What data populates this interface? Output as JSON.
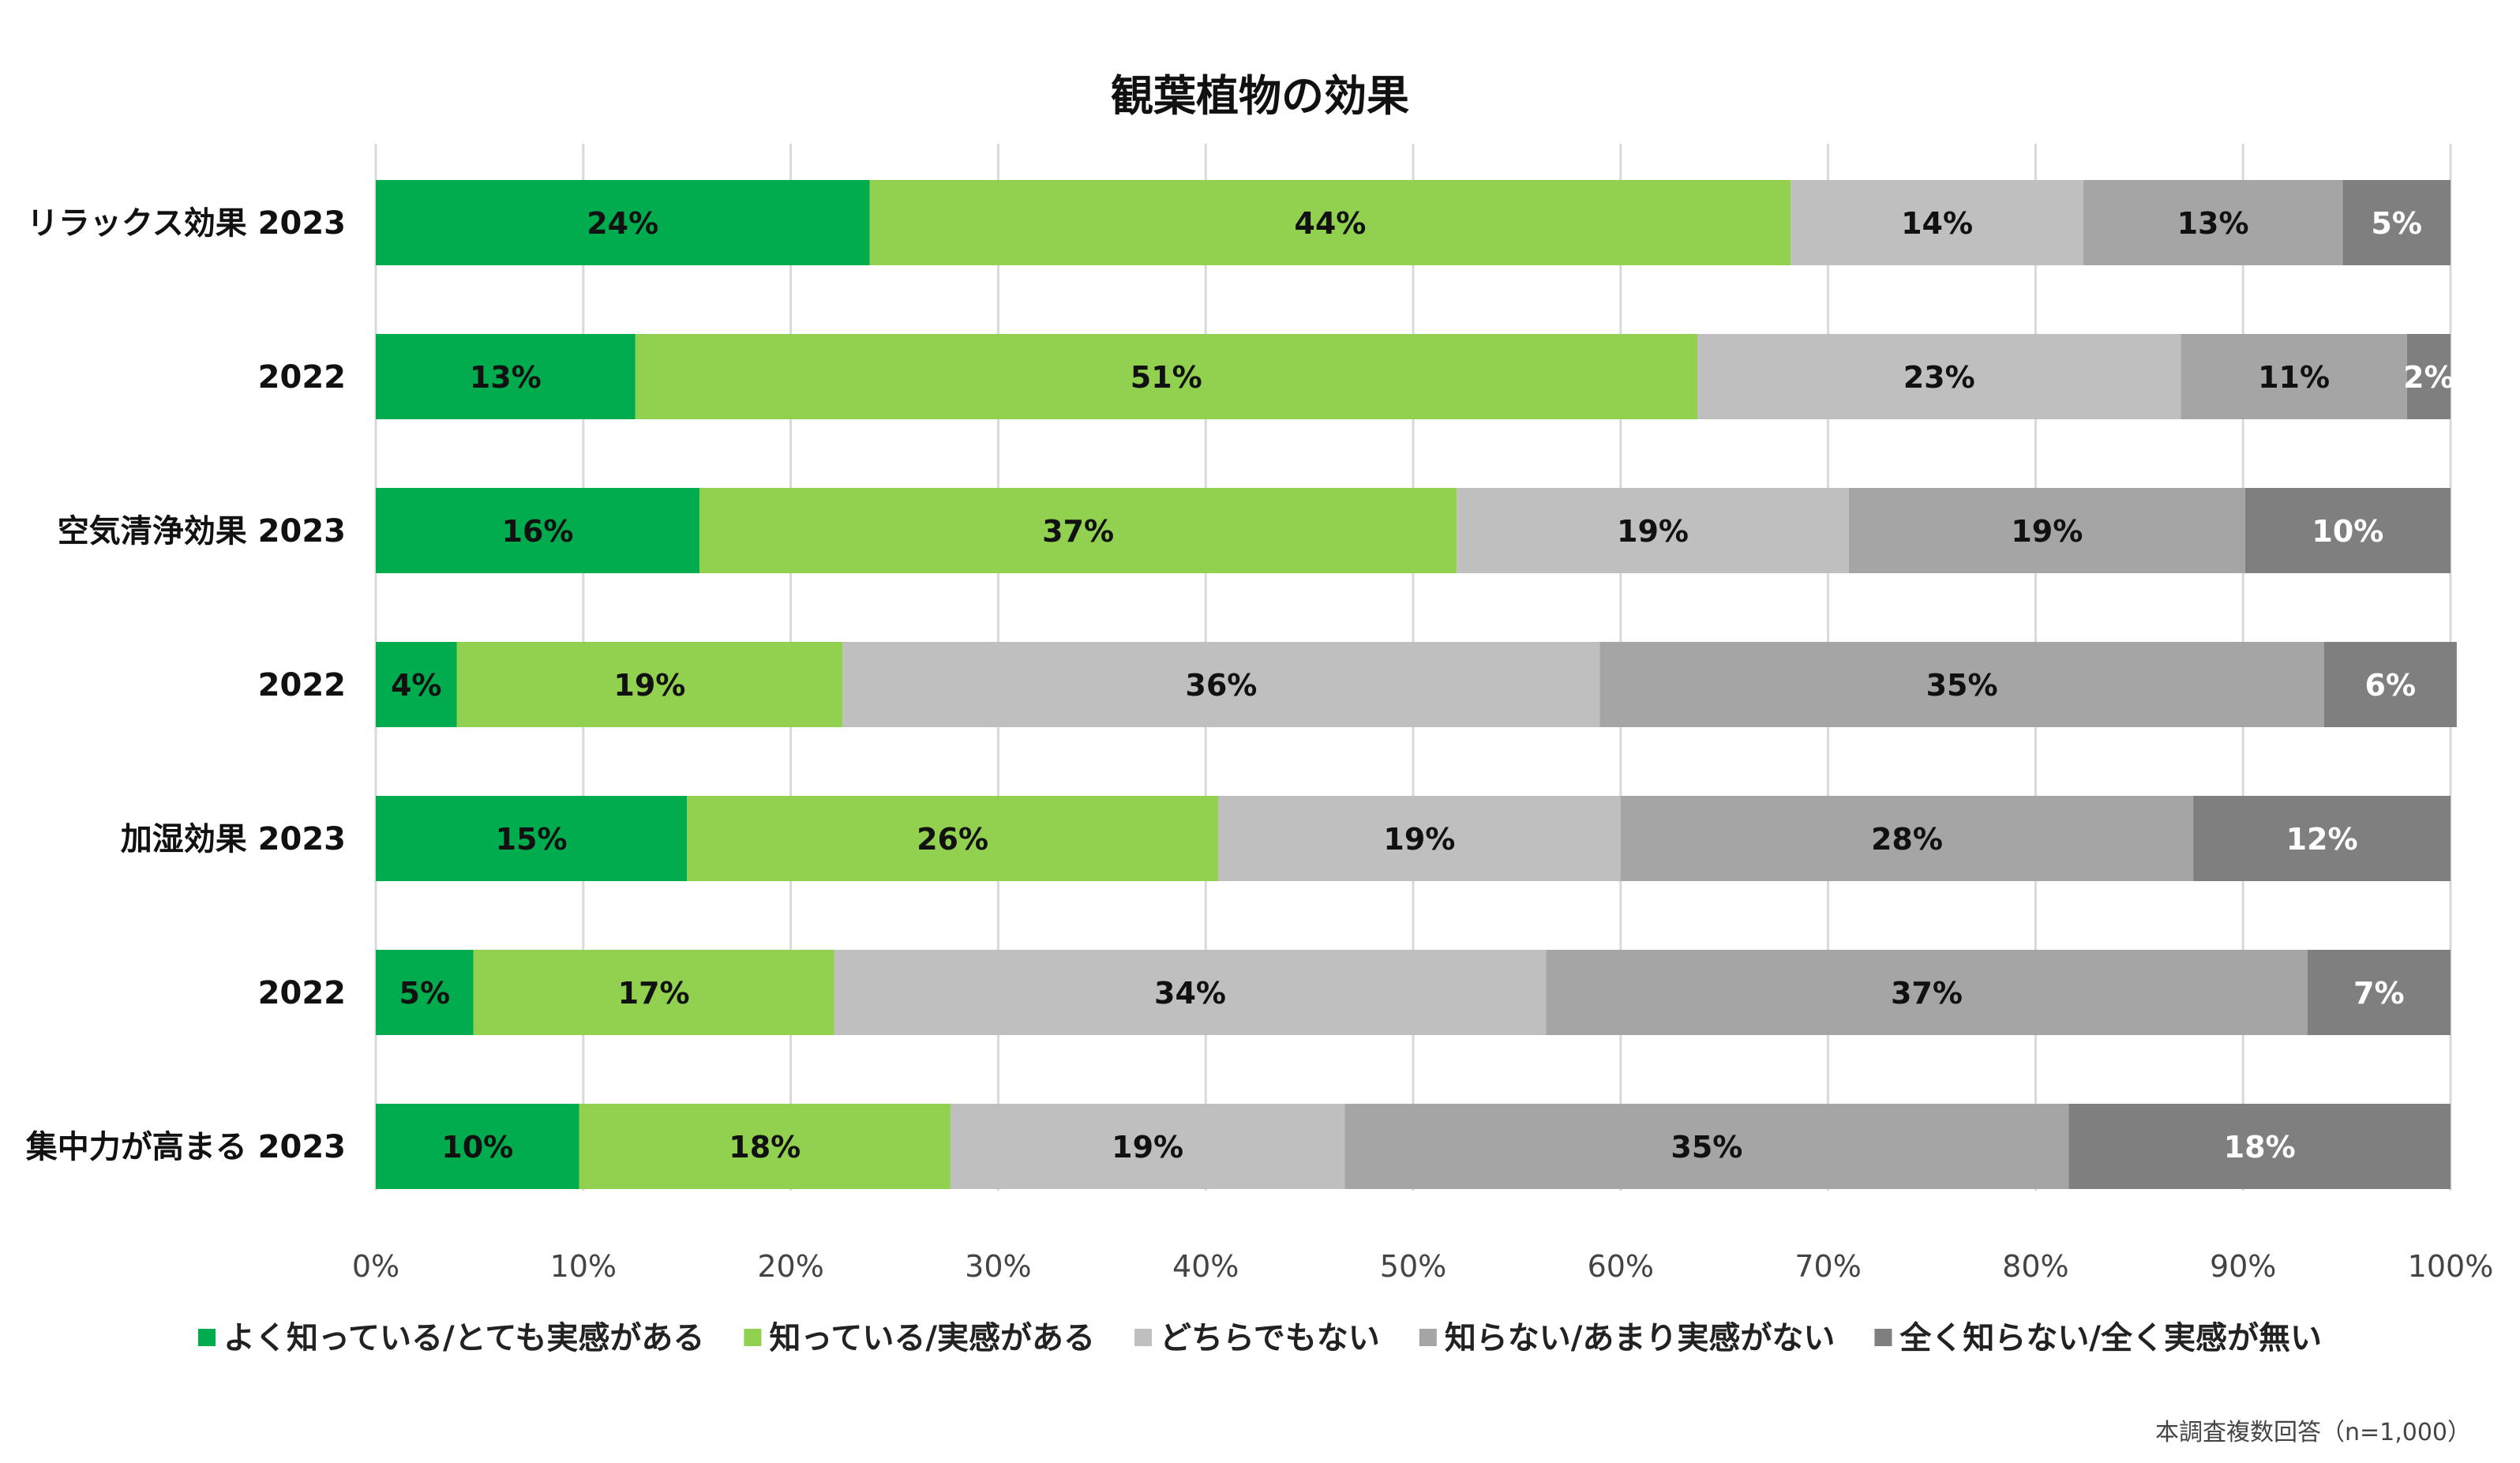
{
  "chart_data": {
    "type": "bar",
    "orientation": "horizontal",
    "stacked": true,
    "title": "観葉植物の効果",
    "categories": [
      "リラックス効果 2023",
      "2022",
      "空気清浄効果 2023",
      "2022",
      "加湿効果 2023",
      "2022",
      "集中力が高まる  2023"
    ],
    "series": [
      {
        "name": "よく知っている/とても実感がある",
        "color": "#00ac4e",
        "values": [
          23.8,
          12.5,
          15.6,
          3.9,
          15.0,
          4.7,
          9.8
        ],
        "labels": [
          "24%",
          "13%",
          "16%",
          "4%",
          "15%",
          "5%",
          "10%"
        ]
      },
      {
        "name": "知っている/実感がある",
        "color": "#92d050",
        "values": [
          44.4,
          51.2,
          36.5,
          18.6,
          25.6,
          17.4,
          17.9
        ],
        "labels": [
          "44%",
          "51%",
          "37%",
          "19%",
          "26%",
          "17%",
          "18%"
        ]
      },
      {
        "name": "どちらでもない",
        "color": "#bfbfbf",
        "values": [
          14.1,
          23.3,
          18.9,
          36.5,
          19.4,
          34.3,
          19.0
        ],
        "labels": [
          "14%",
          "23%",
          "19%",
          "36%",
          "19%",
          "34%",
          "19%"
        ]
      },
      {
        "name": "知らない/あまり実感がない",
        "color": "#a5a5a5",
        "values": [
          12.5,
          10.9,
          19.1,
          34.9,
          27.6,
          36.7,
          34.9
        ],
        "labels": [
          "13%",
          "11%",
          "19%",
          "35%",
          "28%",
          "37%",
          "35%"
        ]
      },
      {
        "name": "全く知らない/全く実感が無い",
        "color": "#7f7f7f",
        "values": [
          5.2,
          2.1,
          9.9,
          6.4,
          12.4,
          6.9,
          18.4
        ],
        "labels": [
          "5%",
          "2%",
          "10%",
          "6%",
          "12%",
          "7%",
          "18%"
        ]
      }
    ],
    "xlim": [
      0,
      100
    ],
    "xticks": [
      "0%",
      "10%",
      "20%",
      "30%",
      "40%",
      "50%",
      "60%",
      "70%",
      "80%",
      "90%",
      "100%"
    ],
    "grid": true,
    "legend": "bottom",
    "label_colors": [
      "#111111",
      "#111111",
      "#111111",
      "#111111",
      "#ffffff"
    ]
  },
  "note": "本調査複数回答（n=1,000）"
}
